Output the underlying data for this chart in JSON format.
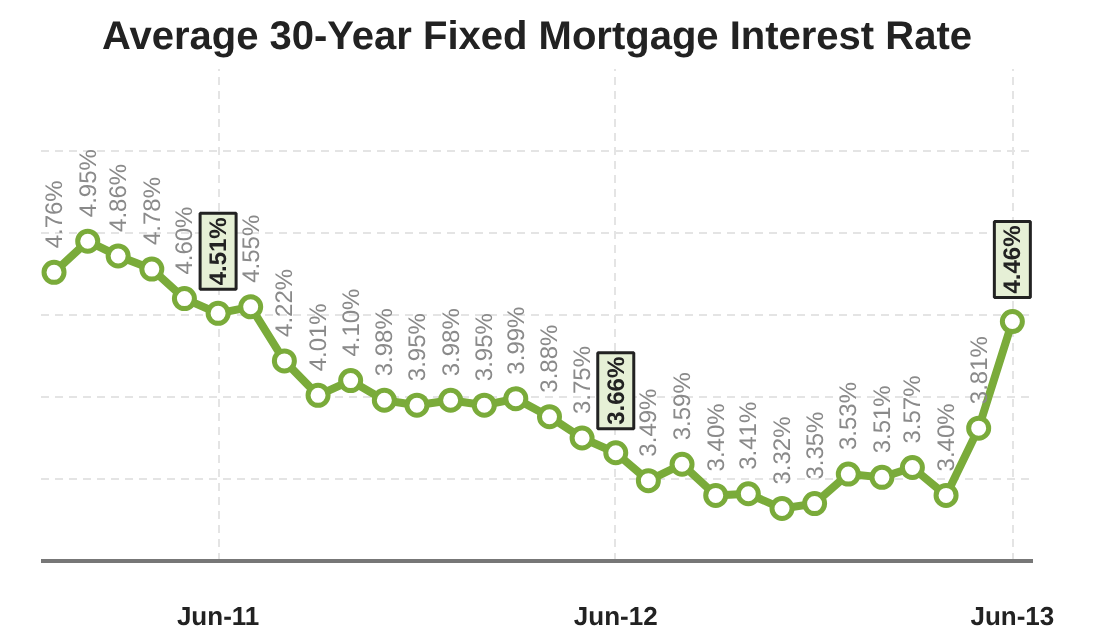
{
  "chart_data": {
    "type": "line",
    "title": "Average 30-Year Fixed Mortgage Interest Rate",
    "x": [
      "2011-01",
      "2011-02",
      "2011-03",
      "2011-04",
      "2011-05",
      "2011-06",
      "2011-07",
      "2011-08",
      "2011-09",
      "2011-10",
      "2011-11",
      "2011-12",
      "2012-01",
      "2012-02",
      "2012-03",
      "2012-04",
      "2012-05",
      "2012-06",
      "2012-07",
      "2012-08",
      "2012-09",
      "2012-10",
      "2012-11",
      "2012-12",
      "2013-01",
      "2013-02",
      "2013-03",
      "2013-04",
      "2013-05",
      "2013-06"
    ],
    "series": [
      {
        "color": "#7aab3a",
        "values": [
          4.76,
          4.95,
          4.86,
          4.78,
          4.6,
          4.51,
          4.55,
          4.22,
          4.01,
          4.1,
          3.98,
          3.95,
          3.98,
          3.95,
          3.99,
          3.88,
          3.75,
          3.66,
          3.49,
          3.59,
          3.4,
          3.41,
          3.32,
          3.35,
          3.53,
          3.51,
          3.57,
          3.4,
          3.81,
          4.46
        ],
        "value_labels": [
          "4.76%",
          "4.95%",
          "4.86%",
          "4.78%",
          "4.60%",
          null,
          "4.55%",
          "4.22%",
          "4.01%",
          "4.10%",
          "3.98%",
          "3.95%",
          "3.98%",
          "3.95%",
          "3.99%",
          "3.88%",
          "3.75%",
          null,
          "3.49%",
          "3.59%",
          "3.40%",
          "3.41%",
          "3.32%",
          "3.35%",
          "3.53%",
          "3.51%",
          "3.57%",
          "3.40%",
          "3.81%",
          null
        ]
      }
    ],
    "annotations": [
      {
        "text": "4.51%",
        "x": "2011-06",
        "y": 4.51
      },
      {
        "text": "3.66%",
        "x": "2012-06",
        "y": 3.66
      },
      {
        "text": "4.46%",
        "x": "2013-06",
        "y": 4.46
      }
    ],
    "xlim": [
      "2010-12-20",
      "2013-06-20"
    ],
    "xticks": [
      {
        "value": "2011-06",
        "label": "Jun-11"
      },
      {
        "value": "2012-06",
        "label": "Jun-12"
      },
      {
        "value": "2013-06",
        "label": "Jun-13"
      }
    ],
    "ylim": [
      3.0,
      6.0
    ],
    "yticks": [
      {
        "value": 3.5,
        "label": null
      },
      {
        "value": 4.0,
        "label": null
      },
      {
        "value": 4.5,
        "label": null
      },
      {
        "value": 5.0,
        "label": null
      },
      {
        "value": 5.5,
        "label": null
      }
    ],
    "tick_labels": "x",
    "grid": true,
    "marker": "circle",
    "line_style": "solid"
  }
}
